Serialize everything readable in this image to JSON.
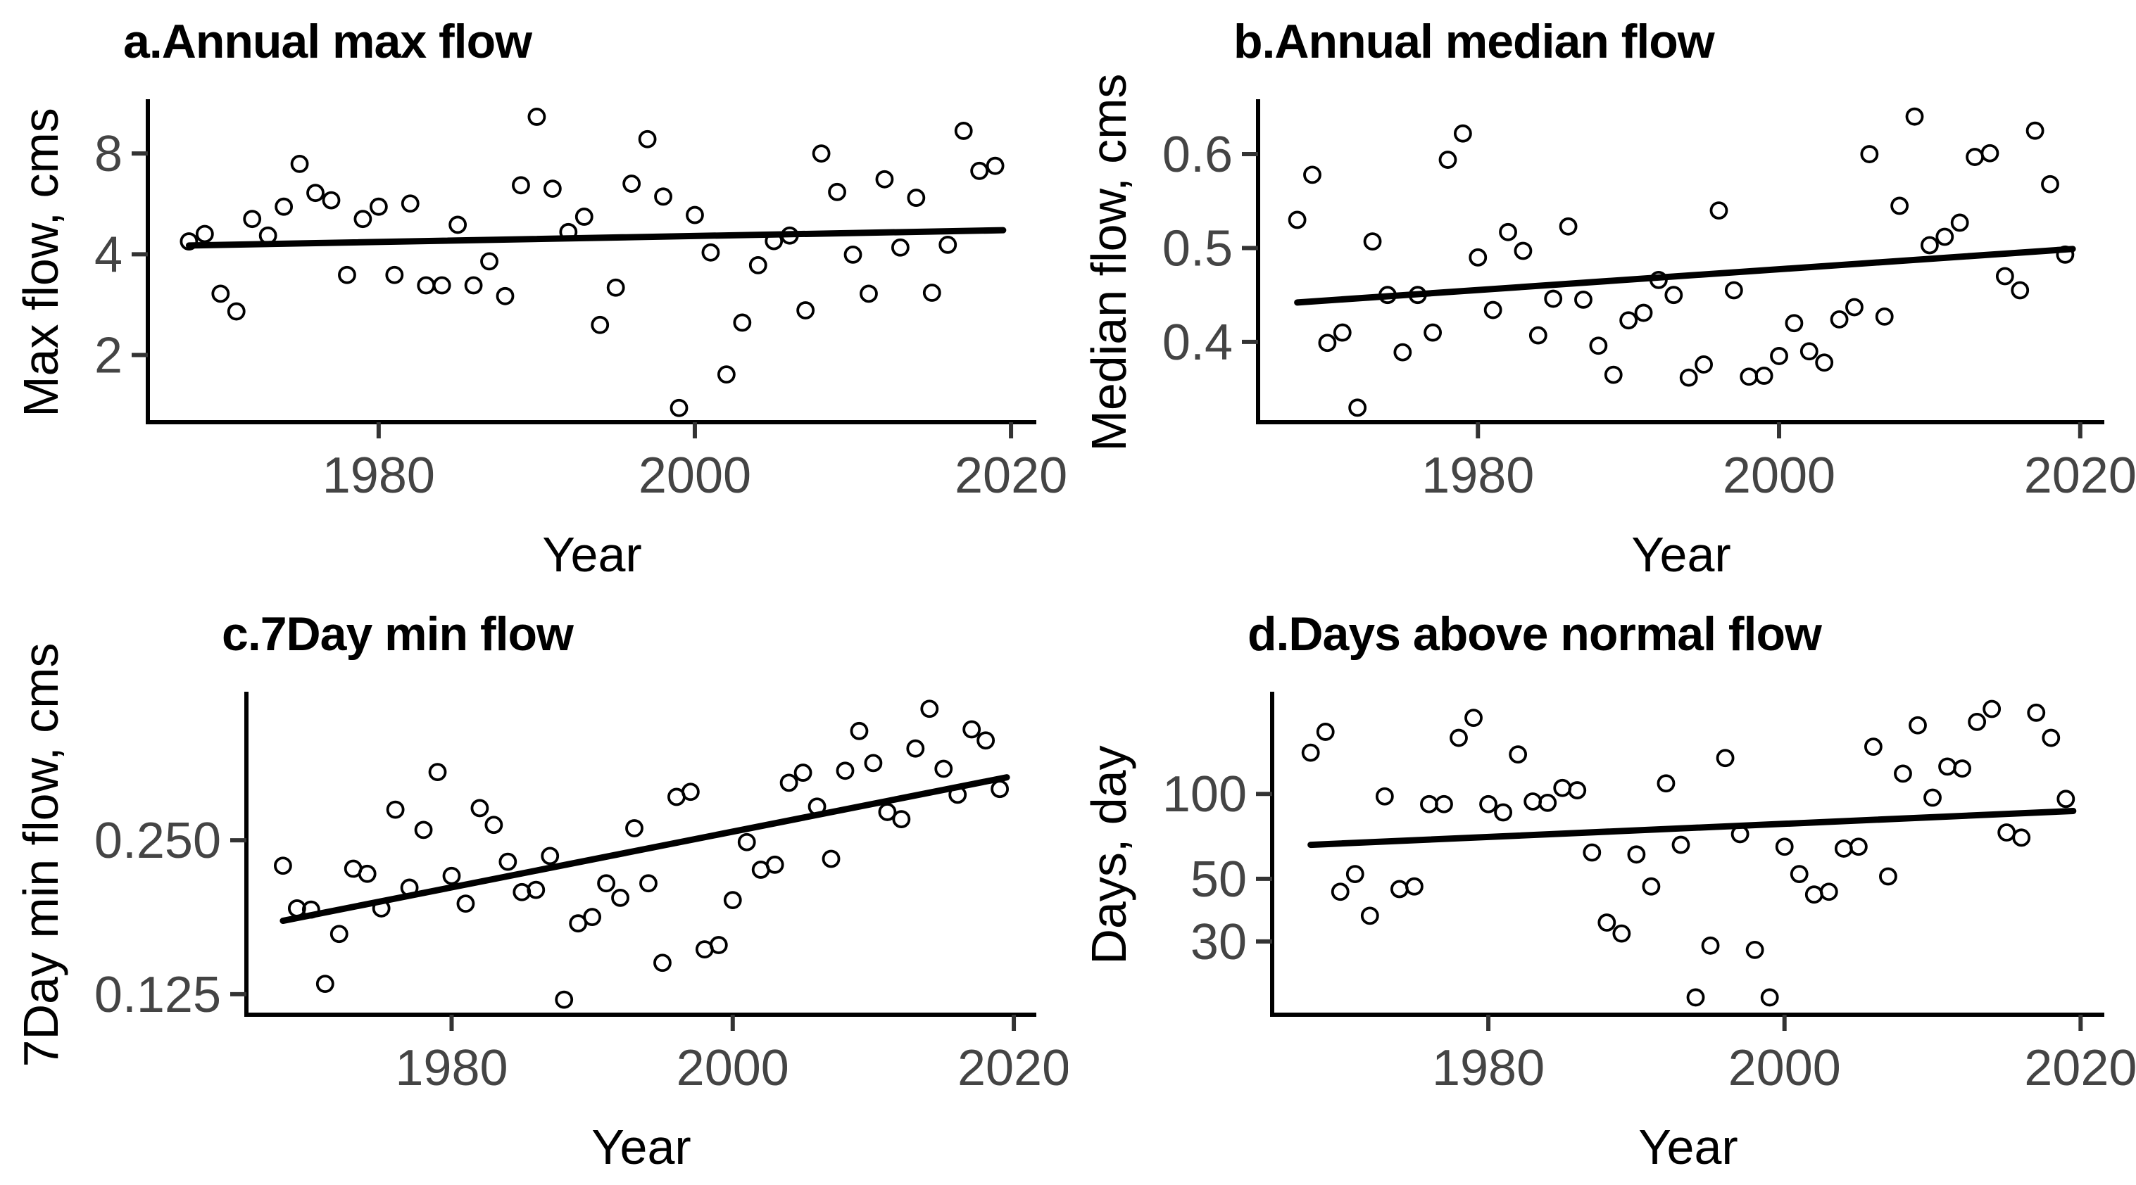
{
  "figure": {
    "background": "#ffffff",
    "point_color": "#000000",
    "line_color": "#000000",
    "axis_color": "#000000",
    "tick_color": "#333333",
    "tick_label_color": "#444444",
    "x_tick_years": [
      1980,
      2000,
      2020
    ]
  },
  "chart_data": [
    {
      "type": "scatter",
      "panel_letter": "a",
      "title": "a.Annual max flow",
      "xlabel": "Year",
      "ylabel": "Max flow, cms",
      "x_scale": "linear",
      "y_scale": "log",
      "x_domain": [
        1965.4,
        2021.6
      ],
      "y_domain": [
        1.26,
        11.4
      ],
      "x_ticks": [
        {
          "value": 1980,
          "label": "1980"
        },
        {
          "value": 2000,
          "label": "2000"
        },
        {
          "value": 2020,
          "label": "2020"
        }
      ],
      "y_ticks": [
        {
          "value": 2,
          "label": "2"
        },
        {
          "value": 4,
          "label": "4"
        },
        {
          "value": 8,
          "label": "8"
        }
      ],
      "grid": false,
      "legend": "none",
      "points": [
        [
          1968,
          4.37
        ],
        [
          1969,
          4.6
        ],
        [
          1970,
          3.05
        ],
        [
          1971,
          2.7
        ],
        [
          1972,
          5.1
        ],
        [
          1973,
          4.55
        ],
        [
          1974,
          5.55
        ],
        [
          1975,
          7.45
        ],
        [
          1976,
          6.1
        ],
        [
          1977,
          5.8
        ],
        [
          1978,
          3.47
        ],
        [
          1979,
          5.1
        ],
        [
          1980,
          5.55
        ],
        [
          1981,
          3.47
        ],
        [
          1982,
          5.67
        ],
        [
          1983,
          3.23
        ],
        [
          1984,
          3.23
        ],
        [
          1985,
          4.9
        ],
        [
          1986,
          3.23
        ],
        [
          1987,
          3.81
        ],
        [
          1988,
          3.0
        ],
        [
          1989,
          6.43
        ],
        [
          1990,
          10.3
        ],
        [
          1991,
          6.28
        ],
        [
          1992,
          4.66
        ],
        [
          1993,
          5.18
        ],
        [
          1994,
          2.46
        ],
        [
          1995,
          3.18
        ],
        [
          1996,
          6.5
        ],
        [
          1997,
          8.83
        ],
        [
          1998,
          5.95
        ],
        [
          1999,
          1.39
        ],
        [
          2000,
          5.24
        ],
        [
          2001,
          4.05
        ],
        [
          2002,
          1.75
        ],
        [
          2003,
          2.5
        ],
        [
          2004,
          3.71
        ],
        [
          2005,
          4.38
        ],
        [
          2006,
          4.55
        ],
        [
          2007,
          2.72
        ],
        [
          2008,
          8.0
        ],
        [
          2009,
          6.14
        ],
        [
          2010,
          3.99
        ],
        [
          2011,
          3.05
        ],
        [
          2012,
          6.7
        ],
        [
          2013,
          4.19
        ],
        [
          2014,
          5.9
        ],
        [
          2015,
          3.07
        ],
        [
          2016,
          4.27
        ],
        [
          2017,
          9.35
        ],
        [
          2018,
          7.1
        ],
        [
          2019,
          7.35
        ]
      ],
      "trend": {
        "x": [
          1968,
          2019.5
        ],
        "y": [
          4.25,
          4.72
        ]
      }
    },
    {
      "type": "scatter",
      "panel_letter": "b",
      "title": "b.Annual median flow",
      "xlabel": "Year",
      "ylabel": "Median flow, cms",
      "x_scale": "linear",
      "y_scale": "linear",
      "x_domain": [
        1965.4,
        2021.6
      ],
      "y_domain": [
        0.3145,
        0.6555
      ],
      "x_ticks": [
        {
          "value": 1980,
          "label": "1980"
        },
        {
          "value": 2000,
          "label": "2000"
        },
        {
          "value": 2020,
          "label": "2020"
        }
      ],
      "y_ticks": [
        {
          "value": 0.4,
          "label": "0.4"
        },
        {
          "value": 0.5,
          "label": "0.5"
        },
        {
          "value": 0.6,
          "label": "0.6"
        }
      ],
      "grid": false,
      "legend": "none",
      "points": [
        [
          1968,
          0.53
        ],
        [
          1969,
          0.578
        ],
        [
          1970,
          0.399
        ],
        [
          1971,
          0.41
        ],
        [
          1972,
          0.33
        ],
        [
          1973,
          0.507
        ],
        [
          1974,
          0.45
        ],
        [
          1975,
          0.389
        ],
        [
          1976,
          0.45
        ],
        [
          1977,
          0.41
        ],
        [
          1978,
          0.594
        ],
        [
          1979,
          0.622
        ],
        [
          1980,
          0.49
        ],
        [
          1981,
          0.434
        ],
        [
          1982,
          0.517
        ],
        [
          1983,
          0.497
        ],
        [
          1984,
          0.407
        ],
        [
          1985,
          0.446
        ],
        [
          1986,
          0.523
        ],
        [
          1987,
          0.445
        ],
        [
          1988,
          0.396
        ],
        [
          1989,
          0.365
        ],
        [
          1990,
          0.423
        ],
        [
          1991,
          0.431
        ],
        [
          1992,
          0.466
        ],
        [
          1993,
          0.45
        ],
        [
          1994,
          0.362
        ],
        [
          1995,
          0.376
        ],
        [
          1996,
          0.54
        ],
        [
          1997,
          0.455
        ],
        [
          1998,
          0.363
        ],
        [
          1999,
          0.364
        ],
        [
          2000,
          0.385
        ],
        [
          2001,
          0.42
        ],
        [
          2002,
          0.39
        ],
        [
          2003,
          0.378
        ],
        [
          2004,
          0.424
        ],
        [
          2005,
          0.437
        ],
        [
          2006,
          0.6
        ],
        [
          2007,
          0.427
        ],
        [
          2008,
          0.545
        ],
        [
          2009,
          0.64
        ],
        [
          2010,
          0.503
        ],
        [
          2011,
          0.512
        ],
        [
          2012,
          0.527
        ],
        [
          2013,
          0.597
        ],
        [
          2014,
          0.601
        ],
        [
          2015,
          0.47
        ],
        [
          2016,
          0.455
        ],
        [
          2017,
          0.625
        ],
        [
          2018,
          0.568
        ],
        [
          2019,
          0.493
        ]
      ],
      "trend": {
        "x": [
          1968,
          2019.5
        ],
        "y": [
          0.442,
          0.499
        ]
      }
    },
    {
      "type": "scatter",
      "panel_letter": "c",
      "title": "c.7Day min flow",
      "xlabel": "Year",
      "ylabel": "7Day min flow, cms",
      "x_scale": "linear",
      "y_scale": "log",
      "x_domain": [
        1965.4,
        2021.6
      ],
      "y_domain": [
        0.114,
        0.482
      ],
      "x_ticks": [
        {
          "value": 1980,
          "label": "1980"
        },
        {
          "value": 2000,
          "label": "2000"
        },
        {
          "value": 2020,
          "label": "2020"
        }
      ],
      "y_ticks": [
        {
          "value": 0.125,
          "label": "0.125"
        },
        {
          "value": 0.25,
          "label": "0.250"
        }
      ],
      "grid": false,
      "legend": "none",
      "points": [
        [
          1968,
          0.223
        ],
        [
          1969,
          0.184
        ],
        [
          1970,
          0.183
        ],
        [
          1971,
          0.131
        ],
        [
          1972,
          0.164
        ],
        [
          1973,
          0.22
        ],
        [
          1974,
          0.215
        ],
        [
          1975,
          0.184
        ],
        [
          1976,
          0.287
        ],
        [
          1977,
          0.202
        ],
        [
          1978,
          0.262
        ],
        [
          1979,
          0.34
        ],
        [
          1980,
          0.213
        ],
        [
          1981,
          0.188
        ],
        [
          1982,
          0.289
        ],
        [
          1983,
          0.268
        ],
        [
          1984,
          0.227
        ],
        [
          1985,
          0.198
        ],
        [
          1986,
          0.2
        ],
        [
          1987,
          0.233
        ],
        [
          1988,
          0.122
        ],
        [
          1989,
          0.172
        ],
        [
          1990,
          0.177
        ],
        [
          1991,
          0.206
        ],
        [
          1992,
          0.193
        ],
        [
          1993,
          0.264
        ],
        [
          1994,
          0.206
        ],
        [
          1995,
          0.144
        ],
        [
          1996,
          0.304
        ],
        [
          1997,
          0.311
        ],
        [
          1998,
          0.153
        ],
        [
          1999,
          0.156
        ],
        [
          2000,
          0.191
        ],
        [
          2001,
          0.248
        ],
        [
          2002,
          0.219
        ],
        [
          2003,
          0.224
        ],
        [
          2004,
          0.324
        ],
        [
          2005,
          0.339
        ],
        [
          2006,
          0.291
        ],
        [
          2007,
          0.23
        ],
        [
          2008,
          0.342
        ],
        [
          2009,
          0.409
        ],
        [
          2010,
          0.354
        ],
        [
          2011,
          0.284
        ],
        [
          2012,
          0.275
        ],
        [
          2013,
          0.378
        ],
        [
          2014,
          0.452
        ],
        [
          2015,
          0.345
        ],
        [
          2016,
          0.307
        ],
        [
          2017,
          0.412
        ],
        [
          2018,
          0.392
        ],
        [
          2019,
          0.315
        ]
      ],
      "trend": {
        "x": [
          1968,
          2019.5
        ],
        "y": [
          0.174,
          0.332
        ]
      }
    },
    {
      "type": "scatter",
      "panel_letter": "d",
      "title": "d.Days above normal flow",
      "xlabel": "Year",
      "ylabel": "Days, day",
      "x_scale": "linear",
      "y_scale": "log",
      "x_domain": [
        1965.4,
        2021.6
      ],
      "y_domain": [
        16.5,
        225
      ],
      "x_ticks": [
        {
          "value": 1980,
          "label": "1980"
        },
        {
          "value": 2000,
          "label": "2000"
        },
        {
          "value": 2020,
          "label": "2020"
        }
      ],
      "y_ticks": [
        {
          "value": 30,
          "label": "30"
        },
        {
          "value": 50,
          "label": "50"
        },
        {
          "value": 100,
          "label": "100"
        }
      ],
      "grid": false,
      "legend": "none",
      "points": [
        [
          1968,
          140
        ],
        [
          1969,
          166
        ],
        [
          1970,
          45
        ],
        [
          1971,
          52
        ],
        [
          1972,
          37
        ],
        [
          1973,
          98
        ],
        [
          1974,
          46
        ],
        [
          1975,
          47
        ],
        [
          1976,
          92
        ],
        [
          1977,
          92
        ],
        [
          1978,
          158
        ],
        [
          1979,
          186
        ],
        [
          1980,
          92
        ],
        [
          1981,
          86
        ],
        [
          1982,
          138
        ],
        [
          1983,
          94
        ],
        [
          1984,
          93
        ],
        [
          1985,
          105
        ],
        [
          1986,
          103
        ],
        [
          1987,
          62
        ],
        [
          1988,
          35
        ],
        [
          1989,
          32
        ],
        [
          1990,
          61
        ],
        [
          1991,
          47
        ],
        [
          1992,
          109
        ],
        [
          1993,
          66
        ],
        [
          1994,
          19
        ],
        [
          1995,
          29
        ],
        [
          1996,
          134
        ],
        [
          1997,
          72
        ],
        [
          1998,
          28
        ],
        [
          1999,
          19
        ],
        [
          2000,
          65
        ],
        [
          2001,
          52
        ],
        [
          2002,
          44
        ],
        [
          2003,
          45
        ],
        [
          2004,
          64
        ],
        [
          2005,
          65
        ],
        [
          2006,
          147
        ],
        [
          2007,
          51
        ],
        [
          2008,
          118
        ],
        [
          2009,
          175
        ],
        [
          2010,
          97
        ],
        [
          2011,
          125
        ],
        [
          2012,
          123
        ],
        [
          2013,
          180
        ],
        [
          2014,
          200
        ],
        [
          2015,
          73
        ],
        [
          2016,
          70
        ],
        [
          2017,
          194
        ],
        [
          2018,
          158
        ],
        [
          2019,
          96
        ]
      ],
      "trend": {
        "x": [
          1968,
          2019.5
        ],
        "y": [
          66,
          87
        ]
      }
    }
  ]
}
